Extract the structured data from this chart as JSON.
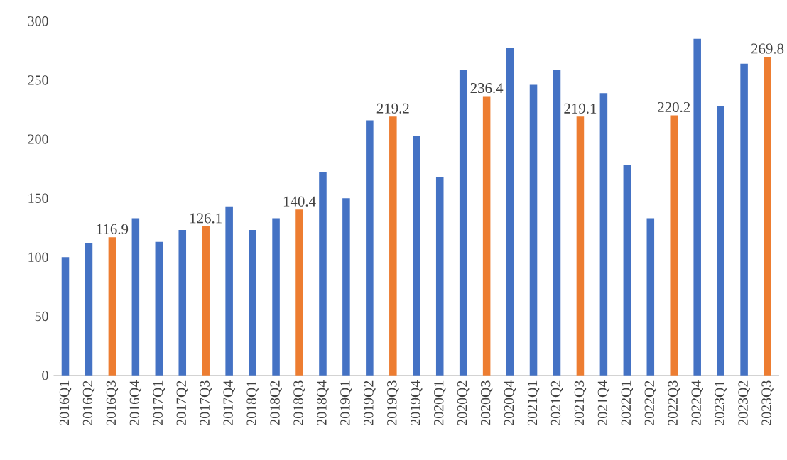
{
  "chart_data": {
    "type": "bar",
    "categories": [
      "2016Q1",
      "2016Q2",
      "2016Q3",
      "2016Q4",
      "2017Q1",
      "2017Q2",
      "2017Q3",
      "2017Q4",
      "2018Q1",
      "2018Q2",
      "2018Q3",
      "2018Q4",
      "2019Q1",
      "2019Q2",
      "2019Q3",
      "2019Q4",
      "2020Q1",
      "2020Q2",
      "2020Q3",
      "2020Q4",
      "2021Q1",
      "2021Q2",
      "2021Q3",
      "2021Q4",
      "2022Q1",
      "2022Q2",
      "2022Q3",
      "2022Q4",
      "2023Q1",
      "2023Q2",
      "2023Q3"
    ],
    "values": [
      100,
      112,
      116.9,
      133,
      113,
      123,
      126.1,
      143,
      123,
      133,
      140.4,
      172,
      150,
      216,
      219.2,
      203,
      168,
      259,
      236.4,
      277,
      246,
      259,
      219.1,
      239,
      178,
      133,
      220.2,
      285,
      228,
      264,
      269.8
    ],
    "colors": [
      "#4472c4",
      "#4472c4",
      "#ed7d31",
      "#4472c4",
      "#4472c4",
      "#4472c4",
      "#ed7d31",
      "#4472c4",
      "#4472c4",
      "#4472c4",
      "#ed7d31",
      "#4472c4",
      "#4472c4",
      "#4472c4",
      "#ed7d31",
      "#4472c4",
      "#4472c4",
      "#4472c4",
      "#ed7d31",
      "#4472c4",
      "#4472c4",
      "#4472c4",
      "#ed7d31",
      "#4472c4",
      "#4472c4",
      "#4472c4",
      "#ed7d31",
      "#4472c4",
      "#4472c4",
      "#4472c4",
      "#ed7d31"
    ],
    "value_labels": [
      null,
      null,
      "116.9",
      null,
      null,
      null,
      "126.1",
      null,
      null,
      null,
      "140.4",
      null,
      null,
      null,
      "219.2",
      null,
      null,
      null,
      "236.4",
      null,
      null,
      null,
      "219.1",
      null,
      null,
      null,
      "220.2",
      null,
      null,
      null,
      "269.8"
    ],
    "ylim": [
      0,
      300
    ],
    "yticks": [
      0,
      50,
      100,
      150,
      200,
      250,
      300
    ],
    "grid": false
  }
}
